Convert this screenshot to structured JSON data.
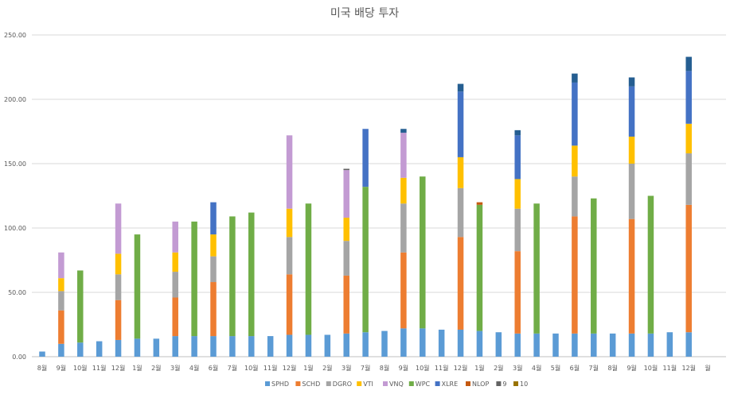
{
  "chart_data": {
    "type": "bar",
    "stacked": true,
    "title": "미국 배당 투자",
    "xlabel": "",
    "ylabel": "",
    "ylim": [
      0,
      250
    ],
    "yticks": [
      "0.00",
      "50.00",
      "100.00",
      "150.00",
      "200.00",
      "250.00"
    ],
    "grid": true,
    "legend_position": "bottom",
    "categories": [
      "8월",
      "9월",
      "10월",
      "11월",
      "12월",
      "1월",
      "2월",
      "3월",
      "4월",
      "6월",
      "7월",
      "10월",
      "11월",
      "12월",
      "1월",
      "2월",
      "3월",
      "7월",
      "8월",
      "9월",
      "10월",
      "11월",
      "12월",
      "1월",
      "2월",
      "3월",
      "4월",
      "5월",
      "6월",
      "7월",
      "8월",
      "9월",
      "10월",
      "11월",
      "12월",
      "월"
    ],
    "series": [
      {
        "name": "SPHD",
        "color": "#5B9BD5",
        "values": [
          4,
          10,
          11,
          12,
          13,
          14,
          14,
          16,
          16,
          16,
          16,
          16,
          16,
          17,
          17,
          17,
          18,
          19,
          20,
          22,
          22,
          21,
          21,
          20,
          19,
          18,
          18,
          18,
          18,
          18,
          18,
          18,
          18,
          19,
          19,
          0
        ]
      },
      {
        "name": "SCHD",
        "color": "#ED7D31",
        "values": [
          0,
          26,
          0,
          0,
          31,
          0,
          0,
          30,
          0,
          42,
          0,
          0,
          0,
          47,
          0,
          0,
          45,
          0,
          0,
          59,
          0,
          0,
          72,
          0,
          0,
          64,
          0,
          0,
          91,
          0,
          0,
          89,
          0,
          0,
          99,
          0
        ]
      },
      {
        "name": "DGRO",
        "color": "#A5A5A5",
        "values": [
          0,
          15,
          0,
          0,
          20,
          0,
          0,
          20,
          0,
          20,
          0,
          0,
          0,
          29,
          0,
          0,
          27,
          0,
          0,
          38,
          0,
          0,
          38,
          0,
          0,
          33,
          0,
          0,
          31,
          0,
          0,
          43,
          0,
          0,
          40,
          0
        ]
      },
      {
        "name": "VTI",
        "color": "#FFC000",
        "values": [
          0,
          10,
          0,
          0,
          16,
          0,
          0,
          15,
          0,
          17,
          0,
          0,
          0,
          22,
          0,
          0,
          18,
          0,
          0,
          20,
          0,
          0,
          24,
          0,
          0,
          23,
          0,
          0,
          24,
          0,
          0,
          21,
          0,
          0,
          23,
          0
        ]
      },
      {
        "name": "VNQ",
        "color": "#C39BD3",
        "values": [
          0,
          20,
          0,
          0,
          39,
          0,
          0,
          24,
          0,
          0,
          0,
          0,
          0,
          57,
          0,
          0,
          37,
          0,
          0,
          35,
          0,
          0,
          0,
          0,
          0,
          0,
          0,
          0,
          0,
          0,
          0,
          0,
          0,
          0,
          0,
          0
        ]
      },
      {
        "name": "WPC",
        "color": "#70AD47",
        "values": [
          0,
          0,
          56,
          0,
          0,
          81,
          0,
          0,
          89,
          0,
          93,
          96,
          0,
          0,
          102,
          0,
          0,
          113,
          0,
          0,
          118,
          0,
          0,
          98,
          0,
          0,
          101,
          0,
          0,
          105,
          0,
          0,
          107,
          0,
          0,
          0
        ]
      },
      {
        "name": "XLRE",
        "color": "#4472C4",
        "values": [
          0,
          0,
          0,
          0,
          0,
          0,
          0,
          0,
          0,
          25,
          0,
          0,
          0,
          0,
          0,
          0,
          0,
          45,
          0,
          0,
          0,
          0,
          51,
          0,
          0,
          34,
          0,
          0,
          49,
          0,
          0,
          39,
          0,
          0,
          41,
          0
        ]
      },
      {
        "name": "NLOP",
        "color": "#C55A11",
        "values": [
          0,
          0,
          0,
          0,
          0,
          0,
          0,
          0,
          0,
          0,
          0,
          0,
          0,
          0,
          0,
          0,
          0,
          0,
          0,
          0,
          0,
          0,
          0,
          2,
          0,
          0,
          0,
          0,
          0,
          0,
          0,
          0,
          0,
          0,
          0,
          0
        ]
      },
      {
        "name": "9",
        "color": "#636363",
        "values": [
          0,
          0,
          0,
          0,
          0,
          0,
          0,
          0,
          0,
          0,
          0,
          0,
          0,
          0,
          0,
          0,
          1,
          0,
          0,
          0,
          0,
          0,
          0,
          0,
          0,
          0,
          0,
          0,
          0,
          0,
          0,
          0,
          0,
          0,
          0,
          0
        ]
      },
      {
        "name": "10",
        "color": "#997300",
        "values": [
          0,
          0,
          0,
          0,
          0,
          0,
          0,
          0,
          0,
          0,
          0,
          0,
          0,
          0,
          0,
          0,
          0,
          0,
          0,
          0,
          0,
          0,
          0,
          0,
          0,
          0,
          0,
          0,
          0,
          0,
          0,
          0,
          0,
          0,
          0,
          0
        ]
      },
      {
        "name": "",
        "color": "#255E91",
        "values": [
          0,
          0,
          0,
          0,
          0,
          0,
          0,
          0,
          0,
          0,
          0,
          0,
          0,
          0,
          0,
          0,
          0,
          0,
          0,
          3,
          0,
          0,
          6,
          0,
          0,
          4,
          0,
          0,
          7,
          0,
          0,
          7,
          0,
          0,
          11,
          0
        ]
      }
    ]
  }
}
